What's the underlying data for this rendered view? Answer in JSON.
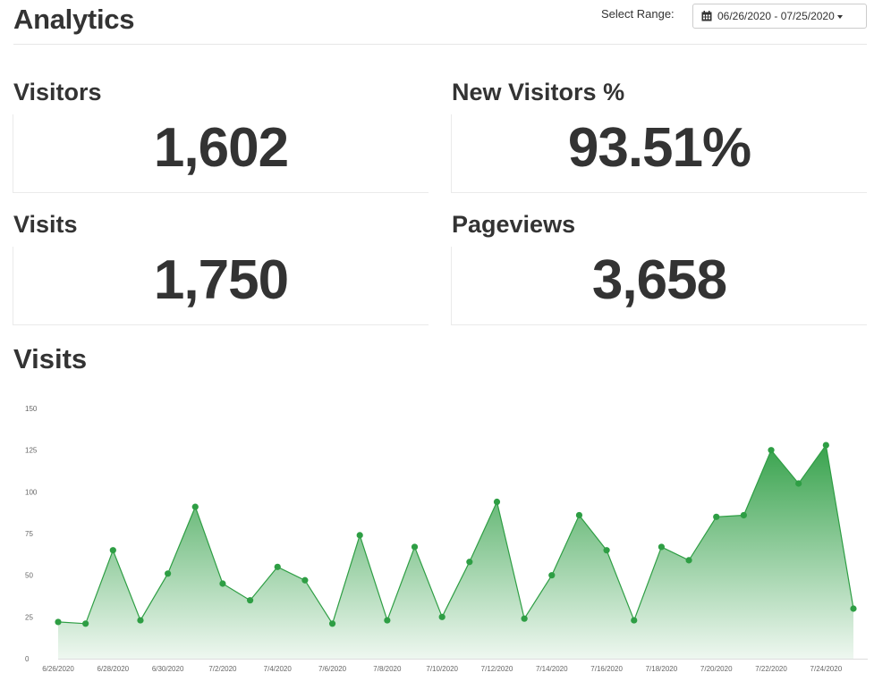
{
  "header": {
    "title": "Analytics",
    "range_label": "Select Range:",
    "range_value": "06/26/2020 - 07/25/2020"
  },
  "stats": {
    "visitors": {
      "label": "Visitors",
      "value": "1,602"
    },
    "new_visitors": {
      "label": "New Visitors %",
      "value": "93.51%"
    },
    "visits": {
      "label": "Visits",
      "value": "1,750"
    },
    "pageviews": {
      "label": "Pageviews",
      "value": "3,658"
    }
  },
  "chart_title": "Visits",
  "icons": {
    "range_icon": "calendar-icon",
    "range_caret": "caret-down-icon"
  },
  "colors": {
    "series": "#2e9e44"
  },
  "chart_data": {
    "type": "area",
    "title": "Visits",
    "x": [
      "6/26/2020",
      "6/27/2020",
      "6/28/2020",
      "6/29/2020",
      "6/30/2020",
      "7/1/2020",
      "7/2/2020",
      "7/3/2020",
      "7/4/2020",
      "7/5/2020",
      "7/6/2020",
      "7/7/2020",
      "7/8/2020",
      "7/9/2020",
      "7/10/2020",
      "7/11/2020",
      "7/12/2020",
      "7/13/2020",
      "7/14/2020",
      "7/15/2020",
      "7/16/2020",
      "7/17/2020",
      "7/18/2020",
      "7/19/2020",
      "7/20/2020",
      "7/21/2020",
      "7/22/2020",
      "7/23/2020",
      "7/24/2020",
      "7/25/2020"
    ],
    "xticks": [
      "6/26/2020",
      "6/28/2020",
      "6/30/2020",
      "7/2/2020",
      "7/4/2020",
      "7/6/2020",
      "7/8/2020",
      "7/10/2020",
      "7/12/2020",
      "7/14/2020",
      "7/16/2020",
      "7/18/2020",
      "7/20/2020",
      "7/22/2020",
      "7/24/2020"
    ],
    "series": [
      {
        "values": [
          22,
          21,
          65,
          23,
          51,
          91,
          45,
          35,
          55,
          47,
          21,
          74,
          23,
          67,
          25,
          58,
          94,
          24,
          50,
          86,
          65,
          23,
          67,
          59,
          85,
          86,
          125,
          105,
          128,
          30
        ]
      }
    ],
    "ylim": [
      0,
      150
    ],
    "yticks": [
      0,
      25,
      50,
      75,
      100,
      125,
      150
    ],
    "grid": false,
    "legend": "none"
  }
}
